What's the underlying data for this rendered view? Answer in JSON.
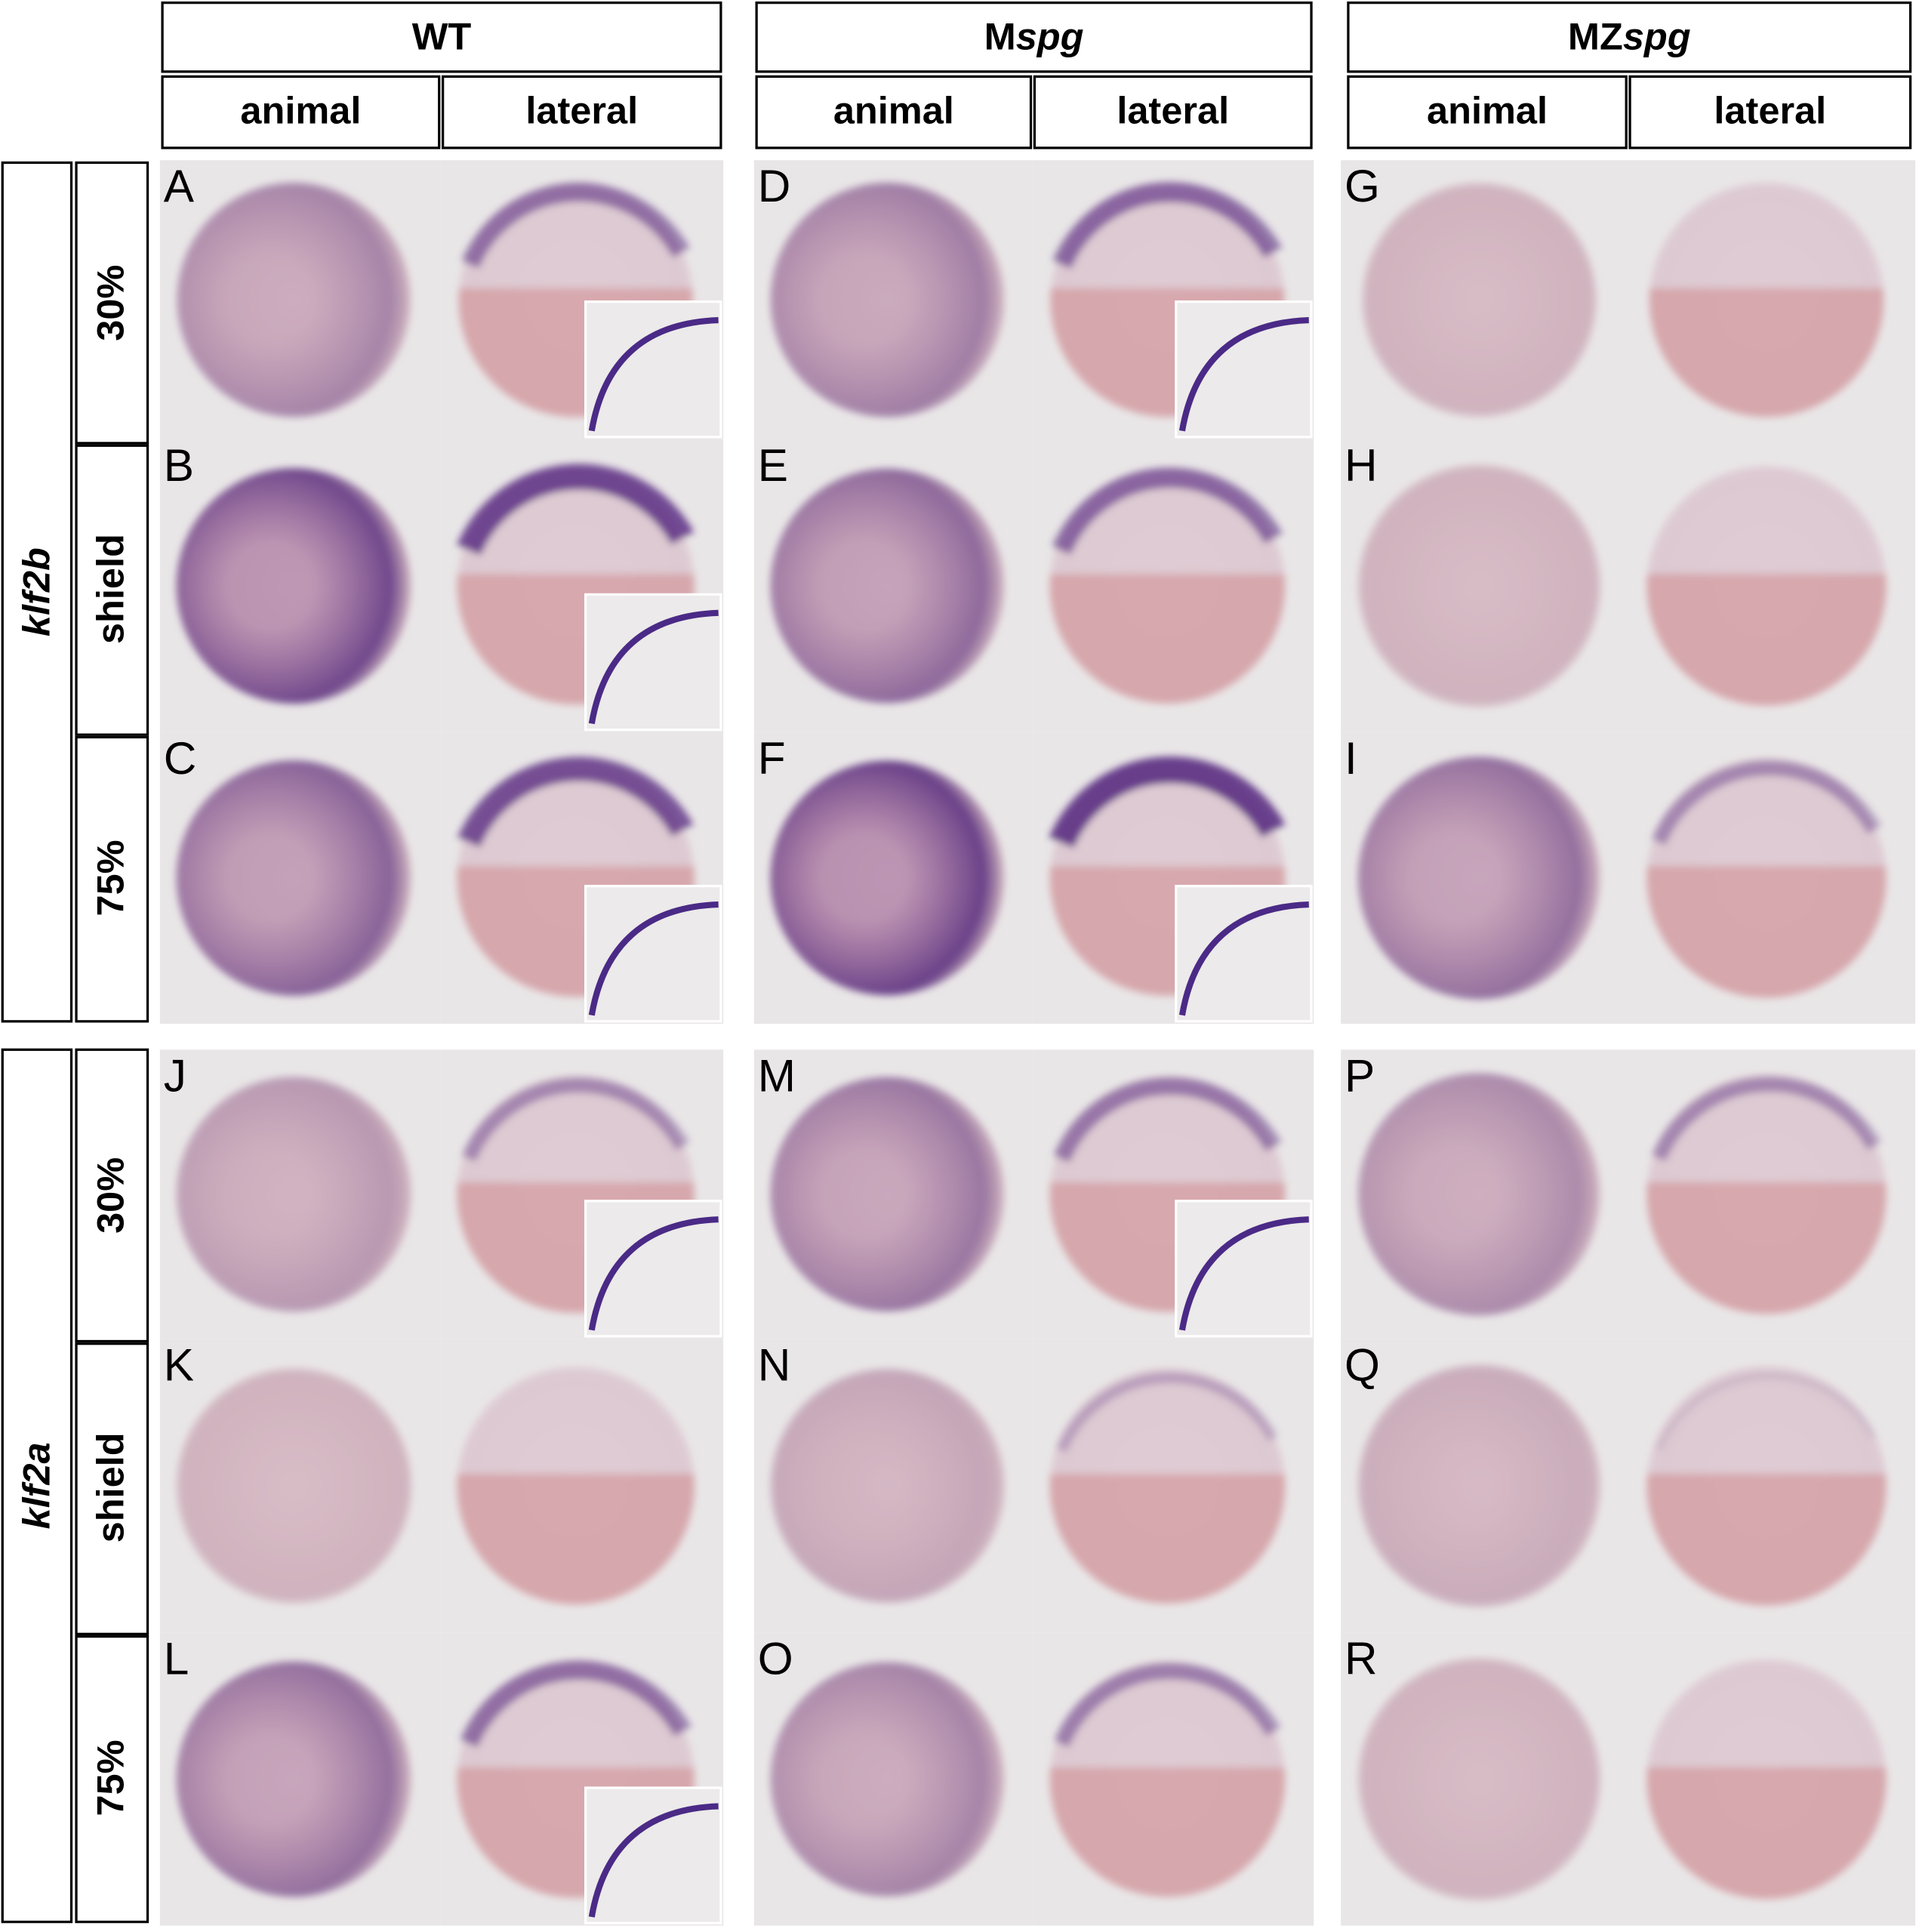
{
  "columns": [
    {
      "title": [
        {
          "text": "WT"
        }
      ],
      "views": [
        "animal",
        "lateral"
      ]
    },
    {
      "title": [
        {
          "text": "M"
        },
        {
          "text": "spg",
          "italic": true
        }
      ],
      "views": [
        "animal",
        "lateral"
      ]
    },
    {
      "title": [
        {
          "text": "MZ"
        },
        {
          "text": "spg",
          "italic": true
        }
      ],
      "views": [
        "animal",
        "lateral"
      ]
    }
  ],
  "genes": [
    {
      "label": "klf2b",
      "stages": [
        "30%",
        "shield",
        "75%"
      ],
      "panels": [
        [
          "A",
          "B",
          "C"
        ],
        [
          "D",
          "E",
          "F"
        ],
        [
          "G",
          "H",
          "I"
        ]
      ]
    },
    {
      "label": "klf2a",
      "stages": [
        "30%",
        "shield",
        "75%"
      ],
      "panels": [
        [
          "J",
          "K",
          "L"
        ],
        [
          "M",
          "N",
          "O"
        ],
        [
          "P",
          "Q",
          "R"
        ]
      ]
    }
  ]
}
